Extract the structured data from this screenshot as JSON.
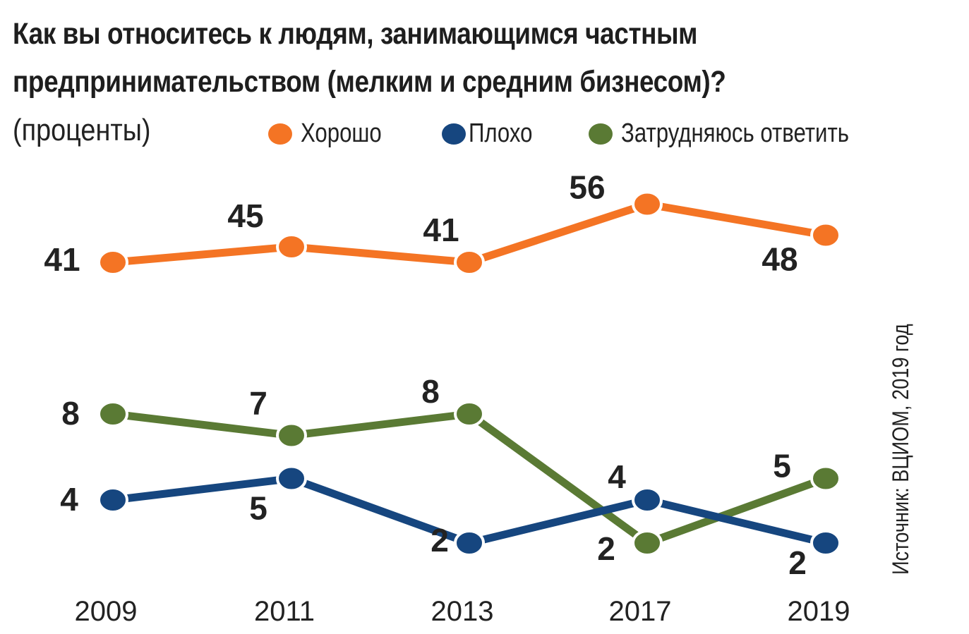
{
  "title_lines": [
    "Как вы относитесь к людям, занимающимся частным",
    "предпринимательством (мелким и средним бизнесом)?"
  ],
  "subtitle": "(проценты)",
  "source": "Источник: ВЦИОМ, 2019 год",
  "chart_data": {
    "type": "line",
    "title": "Как вы относитесь к людям, занимающимся частным предпринимательством (мелким и средним бизнесом)?",
    "subtitle": "(проценты)",
    "xlabel": "",
    "ylabel": "",
    "x": [
      "2009",
      "2011",
      "2013",
      "2017",
      "2019"
    ],
    "grid": "vertical dashed lines at each year",
    "legend_position": "top",
    "series": [
      {
        "name": "Хорошо",
        "color": "#f47424",
        "values": [
          41,
          45,
          41,
          56,
          48
        ]
      },
      {
        "name": "Плохо",
        "color": "#16467f",
        "values": [
          4,
          5,
          2,
          4,
          2
        ]
      },
      {
        "name": "Затрудняюсь ответить",
        "color": "#5a7a34",
        "values": [
          8,
          7,
          8,
          2,
          5
        ]
      }
    ]
  }
}
